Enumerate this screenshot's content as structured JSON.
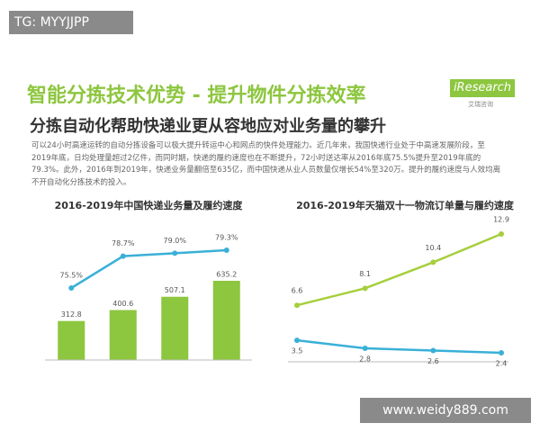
{
  "watermark_top": "TG: MYYJJPP",
  "watermark_bottom": "www.weidy889.com",
  "header": {
    "title": "智能分拣技术优势 - 提升物件分拣效率",
    "subtitle": "分拣自动化帮助快递业更从容地应对业务量的攀升",
    "logo": "iResearch",
    "logo_sub": "艾瑞咨询"
  },
  "paragraph": "可以24小时高速运转的自动分拣设备可以极大提升转运中心和网点的快件处理能力。近几年来，我国快递行业处于中高速发展阶段，至2019年底，日均处理量超过2亿件，而同时期，快递的履约速度也在不断提升，72小时送达率从2016年底75.5%提升至2019年底的79.3%。此外，2016年到2019年，快递业务量翻倍至635亿，而中国快递从业人员数量仅增长54%至320万。提升的履约速度与人效均离不开自动化分拣技术的投入。",
  "chart_data": [
    {
      "type": "bar-line",
      "title": "2016-2019年中国快递业务量及履约速度",
      "categories": [
        null,
        null,
        null,
        null
      ],
      "series": [
        {
          "type": "bar",
          "color": "#8dc63f",
          "values": [
            312.8,
            400.6,
            507.1,
            635.2
          ]
        },
        {
          "type": "line",
          "color": "#3ab0d8",
          "values": [
            75.5,
            78.7,
            79.0,
            79.3
          ],
          "value_labels": [
            "75.5%",
            "78.7%",
            "79.0%",
            "79.3%"
          ]
        }
      ]
    },
    {
      "type": "line",
      "title": "2016-2019年天猫双十一物流订单量与履约速度",
      "categories": [
        null,
        null,
        null,
        null
      ],
      "series": [
        {
          "color": "#a6cf3c",
          "values": [
            6.6,
            8.1,
            10.4,
            12.9
          ]
        },
        {
          "color": "#3ab0d8",
          "values": [
            3.5,
            2.8,
            2.6,
            2.4
          ]
        }
      ]
    }
  ]
}
